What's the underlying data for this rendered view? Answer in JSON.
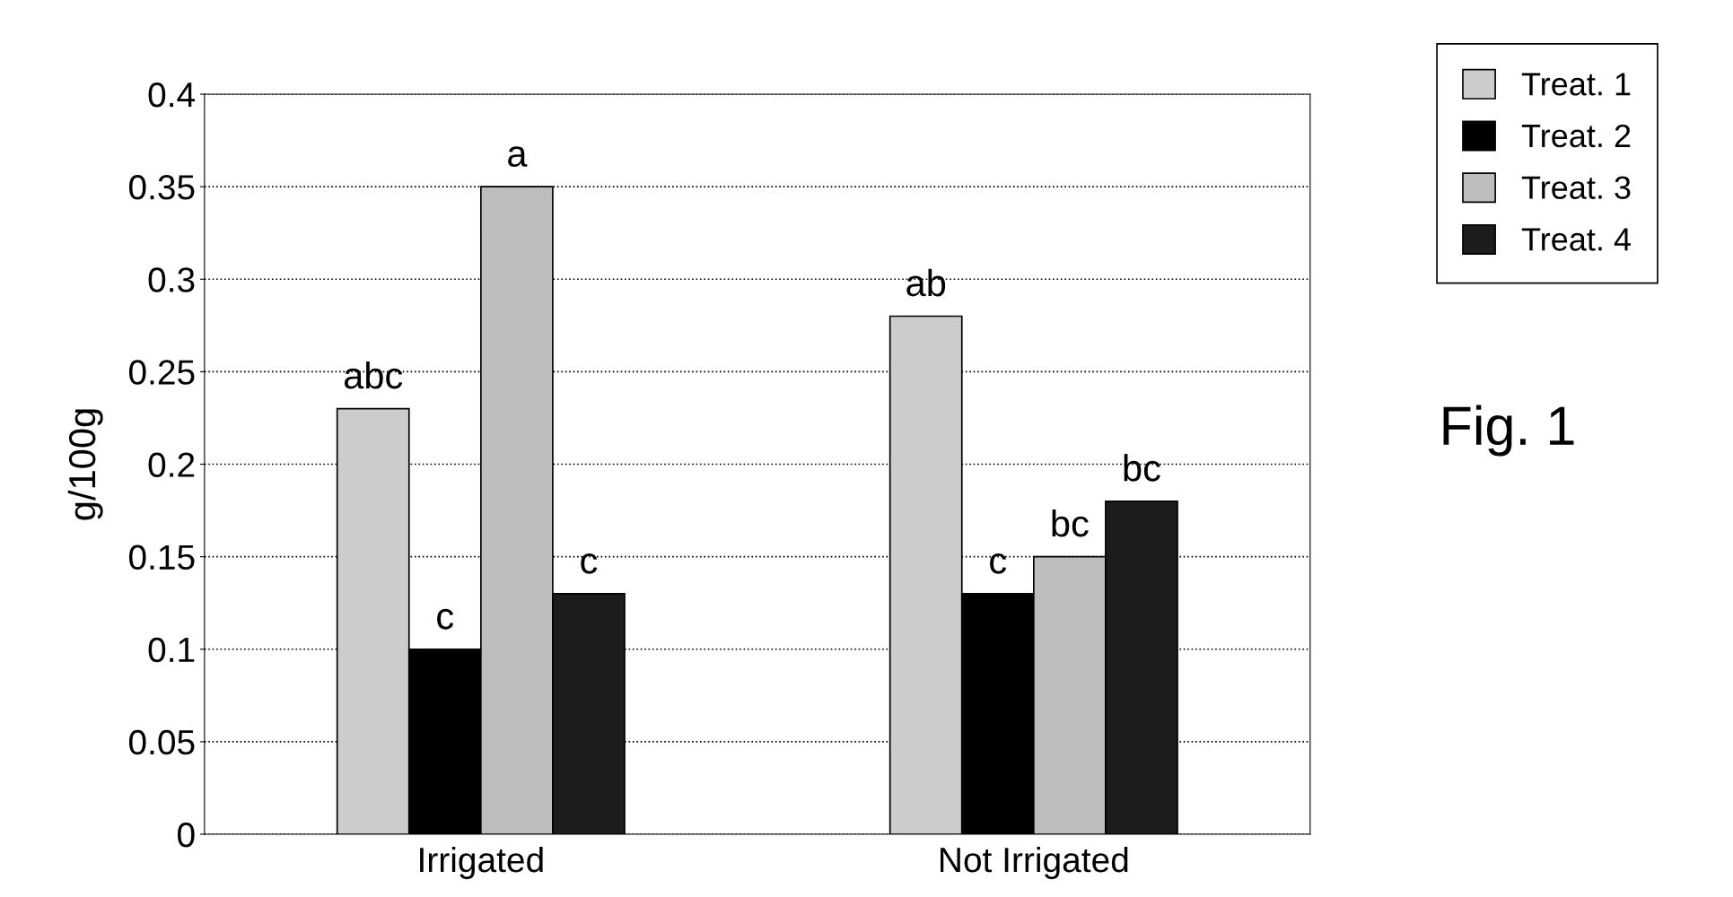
{
  "chart_data": {
    "type": "bar",
    "ylabel": "g/100g",
    "categories": [
      "Irrigated",
      "Not Irrigated"
    ],
    "series": [
      {
        "name": "Treat. 1",
        "color": "#cccccc",
        "values": [
          0.23,
          0.28
        ]
      },
      {
        "name": "Treat. 2",
        "color": "#000000",
        "values": [
          0.1,
          0.13
        ]
      },
      {
        "name": "Treat. 3",
        "color": "#bdbdbd",
        "values": [
          0.35,
          0.15
        ]
      },
      {
        "name": "Treat. 4",
        "color": "#1c1c1c",
        "values": [
          0.13,
          0.18
        ]
      }
    ],
    "ylim": [
      0,
      0.4
    ],
    "yticks": [
      0,
      0.05,
      0.1,
      0.15,
      0.2,
      0.25,
      0.3,
      0.35,
      0.4
    ],
    "grid": "y",
    "legend": "top right",
    "annotations": [
      "abc",
      "c",
      "a",
      "c",
      "ab",
      "c",
      "bc",
      "bc",
      "Fig. 1"
    ]
  }
}
